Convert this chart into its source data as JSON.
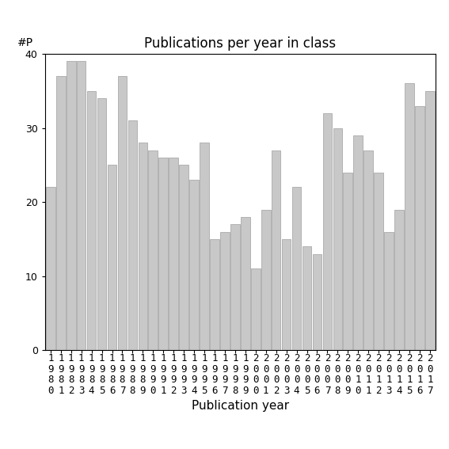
{
  "title": "Publications per year in class",
  "xlabel": "Publication year",
  "ylabel": "#P",
  "years": [
    "1980",
    "1981",
    "1982",
    "1983",
    "1984",
    "1985",
    "1986",
    "1987",
    "1988",
    "1989",
    "1990",
    "1991",
    "1992",
    "1993",
    "1994",
    "1995",
    "1996",
    "1997",
    "1998",
    "1999",
    "2000",
    "2001",
    "2002",
    "2003",
    "2004",
    "2005",
    "2006",
    "2007",
    "2008",
    "2009",
    "2010",
    "2011",
    "2012",
    "2013",
    "2014",
    "2015",
    "2016",
    "2017"
  ],
  "values": [
    22,
    37,
    39,
    39,
    35,
    34,
    25,
    37,
    31,
    28,
    27,
    26,
    26,
    25,
    23,
    28,
    15,
    16,
    17,
    18,
    11,
    19,
    27,
    15,
    22,
    14,
    13,
    32,
    30,
    24,
    29,
    27,
    24,
    16,
    19,
    36,
    33,
    35
  ],
  "bar_color": "#c8c8c8",
  "bar_edge_color": "#aaaaaa",
  "ylim": [
    0,
    40
  ],
  "yticks": [
    0,
    10,
    20,
    30,
    40
  ],
  "background_color": "#ffffff",
  "title_fontsize": 12,
  "xlabel_fontsize": 11,
  "tick_fontsize": 9,
  "ylabel_fontsize": 10
}
